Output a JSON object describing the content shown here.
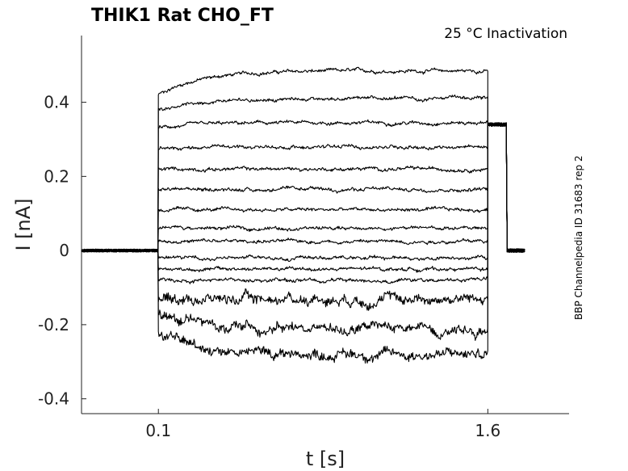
{
  "chart_data": {
    "type": "line",
    "title": "THIK1  Rat  CHO_FT",
    "annotation": "25 °C  Inactivation",
    "side_label": "BBP Channelpedia ID 31683 rep 2",
    "xlabel": "t [s]",
    "ylabel": "I [nA]",
    "xlim": [
      -0.25,
      1.97
    ],
    "ylim": [
      -0.44,
      0.58
    ],
    "xticks": [
      {
        "value": 0.1,
        "label": "0.1"
      },
      {
        "value": 1.6,
        "label": "1.6"
      }
    ],
    "yticks": [
      {
        "value": 0.4,
        "label": "0.4"
      },
      {
        "value": 0.2,
        "label": "0.2"
      },
      {
        "value": 0,
        "label": "0"
      },
      {
        "value": -0.2,
        "label": "-0.2"
      },
      {
        "value": -0.4,
        "label": "-0.4"
      }
    ],
    "grid": false,
    "protocol": {
      "pre_start": -0.25,
      "step_start": 0.1,
      "step_end": 1.6,
      "post_end": 1.77,
      "holding_current": 0.0,
      "tail_current": 0.34
    },
    "series": [
      {
        "step_start_value": 0.42,
        "steady_value": 0.485
      },
      {
        "step_start_value": 0.38,
        "steady_value": 0.41
      },
      {
        "step_start_value": 0.33,
        "steady_value": 0.345
      },
      {
        "step_start_value": 0.275,
        "steady_value": 0.28
      },
      {
        "step_start_value": 0.22,
        "steady_value": 0.22
      },
      {
        "step_start_value": 0.165,
        "steady_value": 0.165
      },
      {
        "step_start_value": 0.11,
        "steady_value": 0.11
      },
      {
        "step_start_value": 0.06,
        "steady_value": 0.06
      },
      {
        "step_start_value": 0.025,
        "steady_value": 0.025
      },
      {
        "step_start_value": -0.02,
        "steady_value": -0.02
      },
      {
        "step_start_value": -0.05,
        "steady_value": -0.05
      },
      {
        "step_start_value": -0.08,
        "steady_value": -0.08
      },
      {
        "step_start_value": -0.13,
        "steady_value": -0.13
      },
      {
        "step_start_value": -0.17,
        "steady_value": -0.21
      },
      {
        "step_start_value": -0.22,
        "steady_value": -0.28
      }
    ]
  }
}
